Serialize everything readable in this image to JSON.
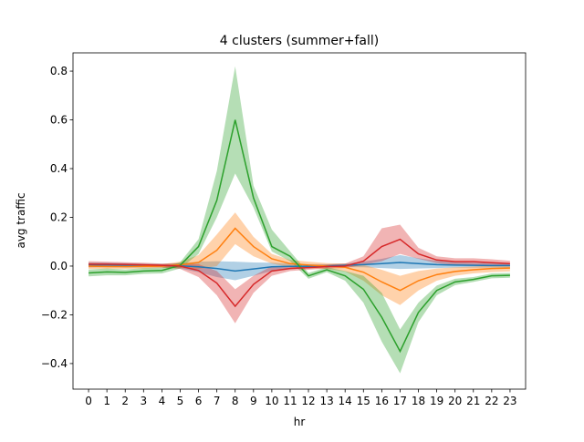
{
  "chart_data": {
    "type": "line",
    "title": "4 clusters (summer+fall)",
    "xlabel": "hr",
    "ylabel": "avg traffic",
    "x": [
      0,
      1,
      2,
      3,
      4,
      5,
      6,
      7,
      8,
      9,
      10,
      11,
      12,
      13,
      14,
      15,
      16,
      17,
      18,
      19,
      20,
      21,
      22,
      23
    ],
    "xticks": [
      "0",
      "1",
      "2",
      "3",
      "4",
      "5",
      "6",
      "7",
      "8",
      "9",
      "10",
      "11",
      "12",
      "13",
      "14",
      "15",
      "16",
      "17",
      "18",
      "19",
      "20",
      "21",
      "22",
      "23"
    ],
    "yticks": [
      "−0.4",
      "−0.2",
      "0.0",
      "0.2",
      "0.4",
      "0.6",
      "0.8"
    ],
    "ylim": [
      -0.505,
      0.875
    ],
    "xlim": [
      -0.85,
      23.85
    ],
    "grid": false,
    "series": [
      {
        "color": "#1f77b4",
        "values": [
          0.005,
          0.005,
          0.003,
          0.002,
          0.002,
          0.001,
          -0.003,
          -0.01,
          -0.02,
          -0.012,
          -0.003,
          -0.001,
          -0.001,
          0.001,
          0.003,
          0.006,
          0.01,
          0.015,
          0.01,
          0.006,
          0.004,
          0.003,
          0.002,
          0.002
        ],
        "lower": [
          -0.005,
          -0.005,
          -0.006,
          -0.006,
          -0.005,
          -0.01,
          -0.025,
          -0.045,
          -0.058,
          -0.04,
          -0.02,
          -0.012,
          -0.008,
          -0.006,
          -0.004,
          -0.005,
          -0.008,
          -0.012,
          -0.01,
          -0.008,
          -0.006,
          -0.006,
          -0.006,
          -0.006
        ],
        "upper": [
          0.015,
          0.014,
          0.012,
          0.01,
          0.009,
          0.012,
          0.018,
          0.02,
          0.018,
          0.015,
          0.014,
          0.01,
          0.008,
          0.008,
          0.01,
          0.018,
          0.03,
          0.045,
          0.032,
          0.022,
          0.016,
          0.014,
          0.012,
          0.012
        ]
      },
      {
        "color": "#ff7f0e",
        "values": [
          0.0,
          -0.002,
          -0.002,
          -0.001,
          0.0,
          0.005,
          0.015,
          0.065,
          0.155,
          0.08,
          0.03,
          0.01,
          0.004,
          0.0,
          -0.005,
          -0.025,
          -0.065,
          -0.1,
          -0.06,
          -0.035,
          -0.022,
          -0.015,
          -0.01,
          -0.008
        ],
        "lower": [
          -0.012,
          -0.012,
          -0.012,
          -0.01,
          -0.008,
          -0.008,
          -0.012,
          0.0,
          0.09,
          0.04,
          0.01,
          -0.005,
          -0.01,
          -0.012,
          -0.022,
          -0.06,
          -0.12,
          -0.16,
          -0.1,
          -0.06,
          -0.04,
          -0.03,
          -0.025,
          -0.022
        ],
        "upper": [
          0.012,
          0.01,
          0.008,
          0.008,
          0.008,
          0.018,
          0.045,
          0.13,
          0.22,
          0.12,
          0.05,
          0.025,
          0.018,
          0.012,
          0.01,
          0.005,
          -0.015,
          -0.04,
          -0.02,
          -0.01,
          -0.005,
          -0.002,
          0.002,
          0.005
        ]
      },
      {
        "color": "#2ca02c",
        "values": [
          -0.028,
          -0.024,
          -0.026,
          -0.02,
          -0.018,
          0.003,
          0.08,
          0.27,
          0.6,
          0.28,
          0.08,
          0.04,
          -0.04,
          -0.015,
          -0.04,
          -0.095,
          -0.21,
          -0.35,
          -0.19,
          -0.1,
          -0.065,
          -0.055,
          -0.04,
          -0.038
        ],
        "lower": [
          -0.042,
          -0.038,
          -0.038,
          -0.032,
          -0.03,
          -0.01,
          0.05,
          0.2,
          0.38,
          0.24,
          0.06,
          0.02,
          -0.052,
          -0.025,
          -0.06,
          -0.15,
          -0.31,
          -0.44,
          -0.23,
          -0.12,
          -0.078,
          -0.065,
          -0.05,
          -0.048
        ],
        "upper": [
          -0.014,
          -0.01,
          -0.014,
          -0.008,
          -0.006,
          0.016,
          0.11,
          0.39,
          0.82,
          0.33,
          0.15,
          0.06,
          -0.028,
          -0.005,
          -0.02,
          -0.04,
          -0.11,
          -0.26,
          -0.15,
          -0.08,
          -0.052,
          -0.045,
          -0.03,
          -0.028
        ]
      },
      {
        "color": "#d62728",
        "values": [
          0.008,
          0.008,
          0.007,
          0.005,
          0.003,
          0.0,
          -0.018,
          -0.07,
          -0.165,
          -0.075,
          -0.02,
          -0.01,
          -0.006,
          -0.002,
          0.0,
          0.02,
          0.08,
          0.11,
          0.05,
          0.025,
          0.018,
          0.018,
          0.014,
          0.01
        ],
        "lower": [
          -0.005,
          -0.004,
          -0.004,
          -0.004,
          -0.005,
          -0.012,
          -0.045,
          -0.12,
          -0.235,
          -0.11,
          -0.04,
          -0.02,
          -0.015,
          -0.01,
          -0.008,
          0.005,
          0.02,
          0.05,
          0.03,
          0.012,
          0.005,
          0.004,
          0.002,
          0.0
        ],
        "upper": [
          0.02,
          0.018,
          0.016,
          0.014,
          0.01,
          0.01,
          0.008,
          -0.02,
          -0.095,
          -0.04,
          0.0,
          0.0,
          0.003,
          0.006,
          0.01,
          0.04,
          0.155,
          0.17,
          0.075,
          0.04,
          0.032,
          0.032,
          0.028,
          0.022
        ]
      }
    ]
  }
}
